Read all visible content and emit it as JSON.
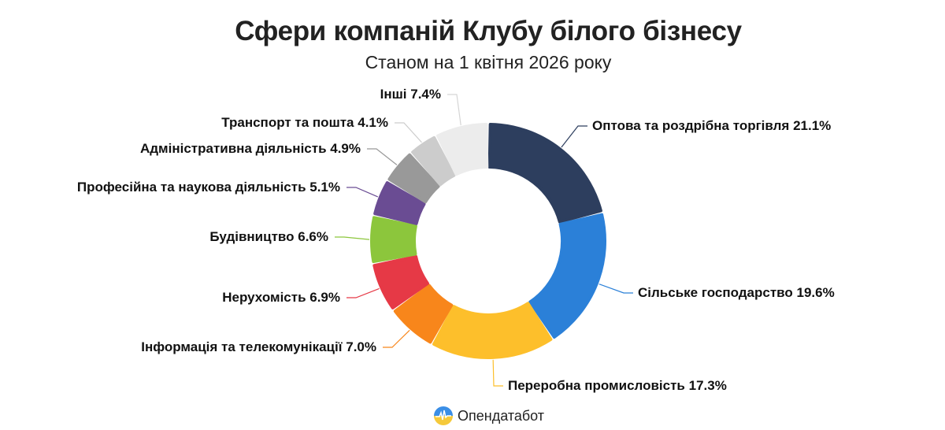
{
  "chart_data": {
    "type": "pie",
    "donut": true,
    "title": "Сфери компаній Клубу білого бізнесу",
    "subtitle": "Станом на 1 квітня 2026 року",
    "start_angle": "top",
    "direction": "clockwise",
    "slices": [
      {
        "label": "Оптова та роздрібна торгівля 21.1%",
        "value": 21.1,
        "color": "#2d3e5e"
      },
      {
        "label": "Сільське господарство 19.6%",
        "value": 19.6,
        "color": "#2b80d8"
      },
      {
        "label": "Переробна промисловість 17.3%",
        "value": 17.3,
        "color": "#fdbf2b"
      },
      {
        "label": "Інформація та телекомунікації 7.0%",
        "value": 7.0,
        "color": "#f8861b"
      },
      {
        "label": "Нерухомість 6.9%",
        "value": 6.9,
        "color": "#e63946"
      },
      {
        "label": "Будівництво 6.6%",
        "value": 6.6,
        "color": "#8cc63c"
      },
      {
        "label": "Професійна та наукова діяльність 5.1%",
        "value": 5.1,
        "color": "#6a4c93"
      },
      {
        "label": "Адміністративна діяльність 4.9%",
        "value": 4.9,
        "color": "#999999"
      },
      {
        "label": "Транспорт та пошта 4.1%",
        "value": 4.1,
        "color": "#cccccc"
      },
      {
        "label": "Інші 7.4%",
        "value": 7.4,
        "color": "#ececec"
      }
    ]
  },
  "footer": {
    "brand": "Опендатабот",
    "logo_icon": "opendatabot-logo-icon"
  }
}
